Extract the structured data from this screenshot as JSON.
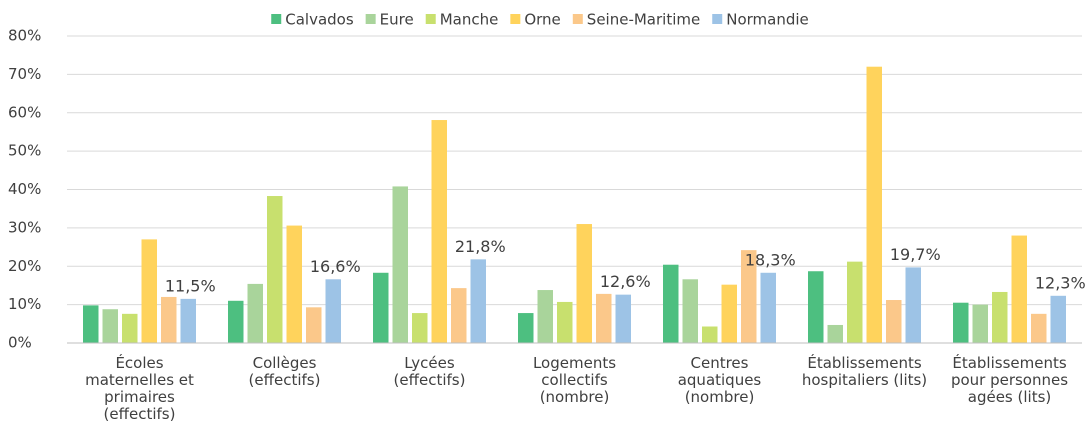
{
  "chart_data": {
    "type": "bar",
    "categories": [
      "Écoles\nmaternelles et\nprimaires\n(effectifs)",
      "Collèges\n(effectifs)",
      "Lycées\n(effectifs)",
      "Logements\ncollectifs\n(nombre)",
      "Centres\naquatiques\n(nombre)",
      "Établissements\nhospitaliers (lits)",
      "Établissements\npour personnes\nagées (lits)"
    ],
    "series": [
      {
        "name": "Calvados",
        "color": "#4dbf80",
        "values": [
          9.8,
          11,
          18.3,
          7.8,
          20.4,
          18.7,
          10.5
        ]
      },
      {
        "name": "Eure",
        "color": "#a9d49b",
        "values": [
          8.8,
          15.4,
          40.8,
          13.8,
          16.6,
          4.7,
          10
        ]
      },
      {
        "name": "Manche",
        "color": "#c8e06e",
        "values": [
          7.6,
          38.3,
          7.8,
          10.7,
          4.3,
          21.2,
          13.3
        ]
      },
      {
        "name": "Orne",
        "color": "#ffd35c",
        "values": [
          27,
          30.6,
          58.1,
          31,
          15.2,
          72,
          28
        ]
      },
      {
        "name": "Seine-Maritime",
        "color": "#fbc88a",
        "values": [
          12,
          9.3,
          14.3,
          12.8,
          24.2,
          11.2,
          7.6
        ]
      },
      {
        "name": "Normandie",
        "color": "#9dc3e6",
        "values": [
          11.5,
          16.6,
          21.8,
          12.6,
          18.3,
          19.7,
          12.3
        ],
        "value_labels": [
          "11,5%",
          "16,6%",
          "21,8%",
          "12,6%",
          "18,3%",
          "19,7%",
          "12,3%"
        ]
      }
    ],
    "ylim": [
      0,
      80
    ],
    "yticks": [
      {
        "value": 0,
        "label": "0%"
      },
      {
        "value": 10,
        "label": "10%"
      },
      {
        "value": 20,
        "label": "20%"
      },
      {
        "value": 30,
        "label": "30%"
      },
      {
        "value": 40,
        "label": "40%"
      },
      {
        "value": 50,
        "label": "50%"
      },
      {
        "value": 60,
        "label": "60%"
      },
      {
        "value": 70,
        "label": "70%"
      },
      {
        "value": 80,
        "label": "80%"
      }
    ],
    "grid": true,
    "legend": "top"
  }
}
